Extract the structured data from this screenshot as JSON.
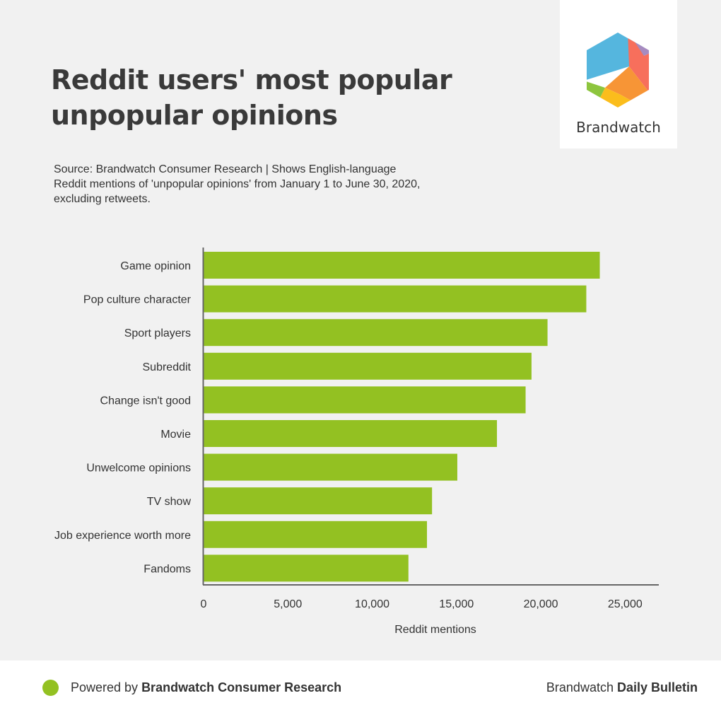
{
  "title_lines": [
    "Reddit users' most popular",
    "unpopular opinions"
  ],
  "subtitle": "Source: Brandwatch Consumer Research |  Shows English-language\nReddit mentions of 'unpopular opinions' from January 1 to June 30, 2020,\nexcluding retweets.",
  "logo": {
    "name": "Brandwatch",
    "icon": "brandwatch-hexagon-logo"
  },
  "colors": {
    "bar": "#93c122",
    "axis": "#666666",
    "background": "#f1f1f1"
  },
  "chart_data": {
    "type": "bar",
    "orientation": "horizontal",
    "categories": [
      "Game opinion",
      "Pop culture character",
      "Sport players",
      "Subreddit",
      "Change isn't good",
      "Movie",
      "Unwelcome opinions",
      "TV show",
      "Job experience worth more",
      "Fandoms"
    ],
    "values": [
      23500,
      22700,
      20400,
      19450,
      19100,
      17400,
      15050,
      13550,
      13250,
      12150
    ],
    "xlabel": "Reddit mentions",
    "ylabel": "",
    "xlim": [
      0,
      27000
    ],
    "ticks": [
      0,
      5000,
      10000,
      15000,
      20000,
      25000
    ],
    "tick_labels": [
      "0",
      "5,000",
      "10,000",
      "15,000",
      "20,000",
      "25,000"
    ],
    "grid": false,
    "legend": "none"
  },
  "footer": {
    "powered_prefix": "Powered by ",
    "powered_brand": "Brandwatch Consumer Research",
    "right_prefix": "Brandwatch ",
    "right_brand": "Daily Bulletin"
  }
}
